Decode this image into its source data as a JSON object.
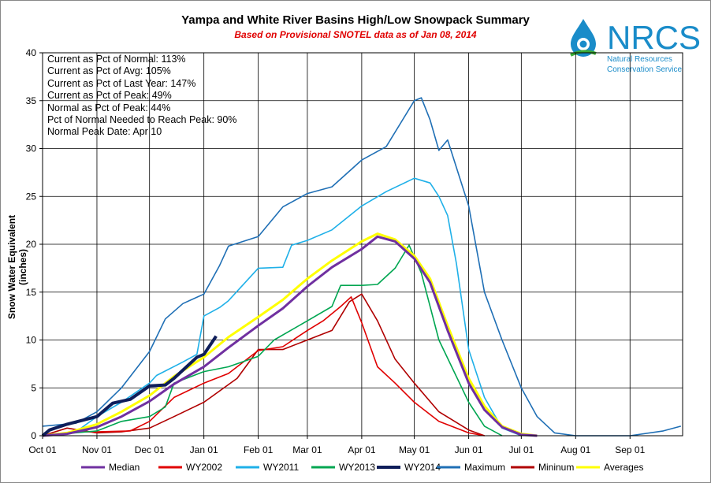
{
  "header": {
    "title": "Yampa and White River Basins High/Low Snowpack Summary",
    "subtitle": "Based on Provisional SNOTEL data as of Jan 08, 2014"
  },
  "logo": {
    "name": "NRCS",
    "line1": "Natural Resources",
    "line2": "Conservation Service"
  },
  "stats": {
    "line1": "Current as Pct of Normal: 113%",
    "line2": "Current as Pct of Avg: 105%",
    "line3": "Current as Pct of Last Year: 147%",
    "line4": "Current as Pct of Peak: 49%",
    "line5": "Normal as Pct of Peak: 44%",
    "line6": "Pct of Normal Needed to Reach Peak: 90%",
    "line7": "Normal Peak Date: Apr 10"
  },
  "chart_data": {
    "type": "line",
    "title": "Yampa and White River Basins High/Low Snowpack Summary",
    "ylabel": "Snow Water Equivalent (inches)",
    "xlabel": "",
    "ylim": [
      0,
      40
    ],
    "yticks": [
      "0",
      "5",
      "10",
      "15",
      "20",
      "25",
      "30",
      "35",
      "40"
    ],
    "x_tick_labels": [
      "Oct 01",
      "Nov 01",
      "Dec 01",
      "Jan 01",
      "Feb 01",
      "Mar 01",
      "Apr 01",
      "May 01",
      "Jun 01",
      "Jul 01",
      "Aug 01",
      "Sep 01"
    ],
    "x_unit": "date (Oct 01 through end of Sep)",
    "grid": true,
    "legend_position": "bottom",
    "series": [
      {
        "name": "Median",
        "color": "#7030a0",
        "points": [
          [
            "Oct 01",
            0
          ],
          [
            "Oct 15",
            0.2
          ],
          [
            "Nov 01",
            0.9
          ],
          [
            "Nov 15",
            2
          ],
          [
            "Dec 01",
            3.6
          ],
          [
            "Dec 15",
            5.4
          ],
          [
            "Jan 01",
            7.2
          ],
          [
            "Jan 15",
            9.2
          ],
          [
            "Feb 01",
            11.5
          ],
          [
            "Feb 15",
            13.3
          ],
          [
            "Mar 01",
            15.6
          ],
          [
            "Mar 15",
            17.6
          ],
          [
            "Apr 01",
            19.5
          ],
          [
            "Apr 10",
            20.8
          ],
          [
            "Apr 20",
            20.3
          ],
          [
            "May 01",
            18.5
          ],
          [
            "May 10",
            16
          ],
          [
            "May 20",
            11
          ],
          [
            "Jun 01",
            5.5
          ],
          [
            "Jun 10",
            2.7
          ],
          [
            "Jun 20",
            0.9
          ],
          [
            "Jul 01",
            0.1
          ],
          [
            "Jul 10",
            0
          ]
        ]
      },
      {
        "name": "WY2002",
        "color": "#e00000",
        "points": [
          [
            "Oct 01",
            0
          ],
          [
            "Oct 20",
            0.4
          ],
          [
            "Nov 01",
            0.4
          ],
          [
            "Nov 20",
            0.5
          ],
          [
            "Dec 01",
            1.5
          ],
          [
            "Dec 15",
            4
          ],
          [
            "Jan 01",
            5.5
          ],
          [
            "Jan 15",
            6.5
          ],
          [
            "Feb 01",
            8.9
          ],
          [
            "Feb 15",
            9.3
          ],
          [
            "Mar 01",
            11
          ],
          [
            "Mar 10",
            12
          ],
          [
            "Mar 20",
            13.5
          ],
          [
            "Mar 26",
            14.5
          ],
          [
            "Apr 01",
            11.8
          ],
          [
            "Apr 10",
            7.2
          ],
          [
            "Apr 20",
            5.5
          ],
          [
            "May 01",
            3.5
          ],
          [
            "May 15",
            1.5
          ],
          [
            "Jun 01",
            0.3
          ],
          [
            "Jun 10",
            0
          ]
        ]
      },
      {
        "name": "WY2011",
        "color": "#1fb0e8",
        "points": [
          [
            "Oct 01",
            0
          ],
          [
            "Oct 20",
            0.4
          ],
          [
            "Nov 01",
            2
          ],
          [
            "Nov 15",
            3.5
          ],
          [
            "Dec 01",
            5.5
          ],
          [
            "Dec 05",
            6.3
          ],
          [
            "Dec 20",
            7.7
          ],
          [
            "Dec 28",
            8.5
          ],
          [
            "Jan 01",
            12.5
          ],
          [
            "Jan 10",
            13.4
          ],
          [
            "Jan 15",
            14.1
          ],
          [
            "Feb 01",
            17.5
          ],
          [
            "Feb 15",
            17.6
          ],
          [
            "Feb 20",
            19.9
          ],
          [
            "Mar 01",
            20.4
          ],
          [
            "Mar 15",
            21.5
          ],
          [
            "Apr 01",
            24
          ],
          [
            "Apr 15",
            25.5
          ],
          [
            "May 01",
            26.9
          ],
          [
            "May 10",
            26.4
          ],
          [
            "May 15",
            25
          ],
          [
            "May 20",
            23
          ],
          [
            "May 25",
            18
          ],
          [
            "Jun 01",
            9
          ],
          [
            "Jun 10",
            4
          ],
          [
            "Jun 20",
            0.8
          ],
          [
            "Jul 01",
            0
          ]
        ]
      },
      {
        "name": "WY2013",
        "color": "#00a651",
        "points": [
          [
            "Oct 01",
            0
          ],
          [
            "Nov 01",
            0.5
          ],
          [
            "Nov 15",
            1.5
          ],
          [
            "Dec 01",
            2
          ],
          [
            "Dec 10",
            3
          ],
          [
            "Dec 15",
            5.5
          ],
          [
            "Jan 01",
            6.7
          ],
          [
            "Jan 15",
            7.2
          ],
          [
            "Feb 01",
            8.3
          ],
          [
            "Feb 10",
            10
          ],
          [
            "Mar 01",
            12
          ],
          [
            "Mar 15",
            13.5
          ],
          [
            "Mar 20",
            15.7
          ],
          [
            "Apr 01",
            15.7
          ],
          [
            "Apr 10",
            15.8
          ],
          [
            "Apr 20",
            17.5
          ],
          [
            "Apr 28",
            19.9
          ],
          [
            "May 05",
            17
          ],
          [
            "May 15",
            10
          ],
          [
            "Jun 01",
            3.5
          ],
          [
            "Jun 10",
            1
          ],
          [
            "Jun 20",
            0
          ]
        ]
      },
      {
        "name": "WY2014",
        "color": "#0f1e5a",
        "points": [
          [
            "Oct 01",
            0
          ],
          [
            "Oct 05",
            0.6
          ],
          [
            "Oct 15",
            1.2
          ],
          [
            "Nov 01",
            2
          ],
          [
            "Nov 10",
            3.4
          ],
          [
            "Nov 20",
            3.8
          ],
          [
            "Dec 01",
            5.2
          ],
          [
            "Dec 10",
            5.3
          ],
          [
            "Dec 15",
            6
          ],
          [
            "Dec 28",
            8.2
          ],
          [
            "Jan 01",
            8.5
          ],
          [
            "Jan 08",
            10.4
          ]
        ]
      },
      {
        "name": "Maximum",
        "color": "#1f6fb5",
        "points": [
          [
            "Oct 01",
            1
          ],
          [
            "Oct 20",
            1.3
          ],
          [
            "Nov 01",
            2.5
          ],
          [
            "Nov 15",
            5
          ],
          [
            "Dec 01",
            8.8
          ],
          [
            "Dec 10",
            12.2
          ],
          [
            "Dec 20",
            13.8
          ],
          [
            "Jan 01",
            14.8
          ],
          [
            "Jan 10",
            17.8
          ],
          [
            "Jan 15",
            19.8
          ],
          [
            "Feb 01",
            20.8
          ],
          [
            "Feb 15",
            23.9
          ],
          [
            "Mar 01",
            25.3
          ],
          [
            "Mar 15",
            26
          ],
          [
            "Apr 01",
            28.8
          ],
          [
            "Apr 15",
            30.2
          ],
          [
            "May 01",
            35
          ],
          [
            "May 05",
            35.3
          ],
          [
            "May 10",
            33
          ],
          [
            "May 15",
            29.8
          ],
          [
            "May 20",
            30.9
          ],
          [
            "Jun 01",
            24
          ],
          [
            "Jun 10",
            15
          ],
          [
            "Jun 20",
            10
          ],
          [
            "Jul 01",
            5
          ],
          [
            "Jul 10",
            2
          ],
          [
            "Jul 20",
            0.3
          ],
          [
            "Aug 01",
            0
          ],
          [
            "Sep 01",
            0
          ],
          [
            "Sep 20",
            0.5
          ],
          [
            "Sep 30",
            1
          ]
        ]
      },
      {
        "name": "Mininum",
        "color": "#b00000",
        "points": [
          [
            "Oct 01",
            0
          ],
          [
            "Oct 15",
            0.8
          ],
          [
            "Nov 01",
            0.3
          ],
          [
            "Nov 15",
            0.4
          ],
          [
            "Dec 01",
            0.8
          ],
          [
            "Dec 15",
            2
          ],
          [
            "Jan 01",
            3.5
          ],
          [
            "Jan 20",
            6
          ],
          [
            "Feb 01",
            9
          ],
          [
            "Feb 15",
            9
          ],
          [
            "Mar 01",
            10
          ],
          [
            "Mar 15",
            11
          ],
          [
            "Mar 25",
            14
          ],
          [
            "Apr 01",
            14.8
          ],
          [
            "Apr 10",
            12
          ],
          [
            "Apr 20",
            8
          ],
          [
            "May 01",
            5.5
          ],
          [
            "May 15",
            2.5
          ],
          [
            "Jun 01",
            0.6
          ],
          [
            "Jun 10",
            0
          ]
        ]
      },
      {
        "name": "Averages",
        "color": "#ffff00",
        "points": [
          [
            "Oct 01",
            0
          ],
          [
            "Oct 15",
            0.3
          ],
          [
            "Nov 01",
            1.2
          ],
          [
            "Nov 15",
            2.5
          ],
          [
            "Dec 01",
            4.2
          ],
          [
            "Dec 15",
            6.2
          ],
          [
            "Jan 01",
            8.2
          ],
          [
            "Jan 15",
            10.3
          ],
          [
            "Feb 01",
            12.4
          ],
          [
            "Feb 15",
            14.2
          ],
          [
            "Mar 01",
            16.4
          ],
          [
            "Mar 15",
            18.3
          ],
          [
            "Apr 01",
            20.3
          ],
          [
            "Apr 10",
            21.1
          ],
          [
            "Apr 20",
            20.5
          ],
          [
            "May 01",
            18.8
          ],
          [
            "May 10",
            16.4
          ],
          [
            "May 20",
            11.5
          ],
          [
            "Jun 01",
            6
          ],
          [
            "Jun 10",
            3.1
          ],
          [
            "Jun 20",
            1
          ],
          [
            "Jul 01",
            0.2
          ],
          [
            "Jul 10",
            0
          ]
        ]
      }
    ]
  }
}
